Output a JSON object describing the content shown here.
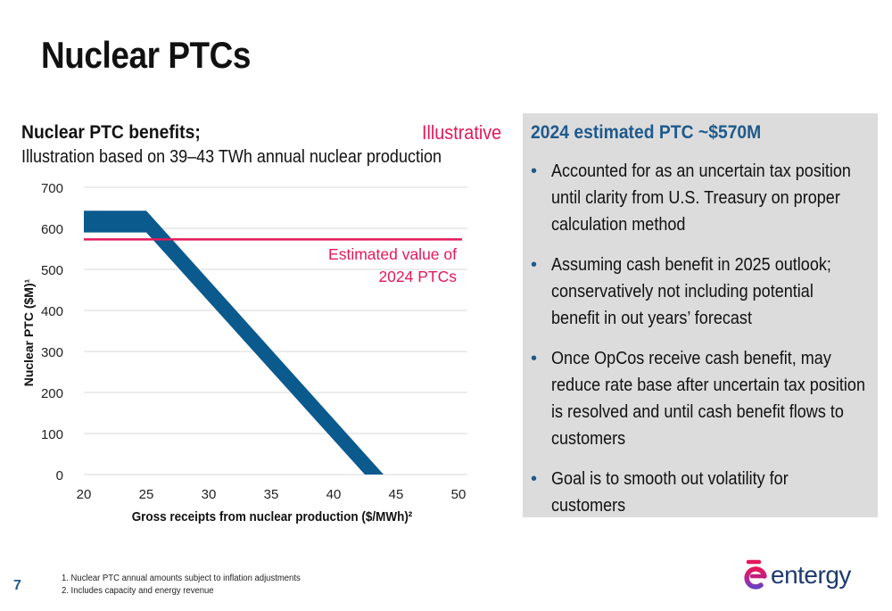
{
  "page": {
    "title": "Nuclear PTCs",
    "page_number": "7"
  },
  "chart_block": {
    "heading": "Nuclear PTC benefits;",
    "tag": "Illustrative",
    "subheading": "Illustration based on 39–43 TWh annual nuclear production",
    "reference_label_line1": "Estimated value of",
    "reference_label_line2": "2024 PTCs",
    "ylabel": "Nuclear PTC ($M)¹",
    "xlabel": "Gross receipts from nuclear production ($/MWh)²"
  },
  "chart_data": {
    "type": "area",
    "xlabel": "Gross receipts from nuclear production ($/MWh)²",
    "ylabel": "Nuclear PTC ($M)¹",
    "xlim": [
      20,
      50
    ],
    "ylim": [
      0,
      700
    ],
    "x_ticks": [
      20,
      25,
      30,
      35,
      40,
      45,
      50
    ],
    "y_ticks": [
      0,
      100,
      200,
      300,
      400,
      500,
      600,
      700
    ],
    "grid": "horizontal",
    "band": {
      "color": "#0b5a8e",
      "upper": [
        [
          20,
          643
        ],
        [
          25,
          643
        ],
        [
          44,
          0
        ]
      ],
      "lower": [
        [
          20,
          590
        ],
        [
          25,
          590
        ],
        [
          42.5,
          0
        ]
      ]
    },
    "reference_line": {
      "y": 573,
      "color": "#e3195a",
      "label": "Estimated value of 2024 PTCs"
    }
  },
  "panel": {
    "heading": "2024 estimated PTC ~$570M",
    "bullet_marker": "•",
    "bullets": [
      "Accounted for as an uncertain tax position until clarity from U.S. Treasury on proper calculation method",
      "Assuming cash benefit in 2025 outlook; conservatively not including potential benefit in out years’ forecast",
      "Once OpCos receive cash benefit, may reduce rate base after uncertain tax position is resolved and until cash benefit flows to customers",
      "Goal is to smooth out volatility for customers"
    ]
  },
  "footnotes": [
    "1. Nuclear PTC annual amounts subject to inflation adjustments",
    "2. Includes capacity and energy revenue"
  ],
  "logo": {
    "text": "entergy",
    "icon": "entergy-e-logo-icon",
    "colors": [
      "#e3195a",
      "#7b3fbf",
      "#1e5a8c"
    ]
  }
}
